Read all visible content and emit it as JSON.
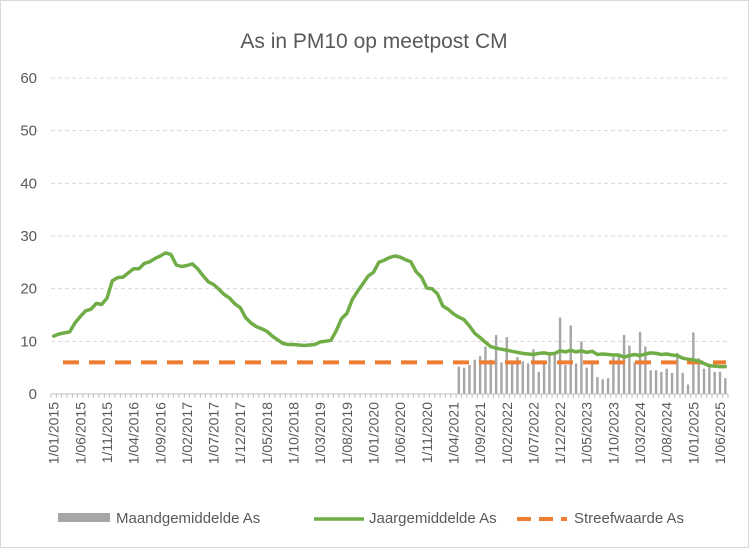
{
  "chart_data": {
    "type": "line",
    "title": "As in PM10 op meetpost CM",
    "xlabel": "",
    "ylabel": "",
    "ylim": [
      0,
      60
    ],
    "yticks": [
      "0",
      "10",
      "20",
      "30",
      "40",
      "50",
      "60"
    ],
    "grid": "horizontal dashed",
    "legend_position": "bottom",
    "x_range": [
      "2015-01",
      "2025-07"
    ],
    "xtick_labels": [
      "1/01/2015",
      "1/06/2015",
      "1/11/2015",
      "1/04/2016",
      "1/09/2016",
      "1/02/2017",
      "1/07/2017",
      "1/12/2017",
      "1/05/2018",
      "1/10/2018",
      "1/03/2019",
      "1/08/2019",
      "1/01/2020",
      "1/06/2020",
      "1/11/2020",
      "1/04/2021",
      "1/09/2021",
      "1/02/2022",
      "1/07/2022",
      "1/12/2022",
      "1/05/2023",
      "1/10/2023",
      "1/03/2024",
      "1/08/2024",
      "1/01/2025",
      "1/06/2025"
    ],
    "xtick_dates": [
      "2015-01",
      "2015-06",
      "2015-11",
      "2016-04",
      "2016-09",
      "2017-02",
      "2017-07",
      "2017-12",
      "2018-05",
      "2018-10",
      "2019-03",
      "2019-08",
      "2020-01",
      "2020-06",
      "2020-11",
      "2021-04",
      "2021-09",
      "2022-02",
      "2022-07",
      "2022-12",
      "2023-05",
      "2023-10",
      "2024-03",
      "2024-08",
      "2025-01",
      "2025-06"
    ],
    "series": [
      {
        "name": "Maandgemiddelde As",
        "type": "bar",
        "color": "#a6a6a6",
        "x": [
          "2021-05",
          "2021-06",
          "2021-07",
          "2021-08",
          "2021-09",
          "2021-10",
          "2021-11",
          "2021-12",
          "2022-01",
          "2022-02",
          "2022-03",
          "2022-04",
          "2022-05",
          "2022-06",
          "2022-07",
          "2022-08",
          "2022-09",
          "2022-10",
          "2022-11",
          "2022-12",
          "2023-01",
          "2023-02",
          "2023-03",
          "2023-04",
          "2023-05",
          "2023-06",
          "2023-07",
          "2023-08",
          "2023-09",
          "2023-10",
          "2023-11",
          "2023-12",
          "2024-01",
          "2024-02",
          "2024-03",
          "2024-04",
          "2024-05",
          "2024-06",
          "2024-07",
          "2024-08",
          "2024-09",
          "2024-10",
          "2024-11",
          "2024-12",
          "2025-01",
          "2025-02",
          "2025-03",
          "2025-04",
          "2025-05",
          "2025-06",
          "2025-07"
        ],
        "values": [
          5.2,
          5.0,
          5.5,
          6.5,
          7.2,
          9.0,
          6.5,
          11.2,
          6.0,
          10.8,
          5.6,
          7.0,
          6.2,
          5.8,
          8.5,
          4.2,
          6.0,
          8.0,
          7.5,
          14.5,
          5.5,
          13.0,
          5.8,
          10.0,
          5.0,
          6.2,
          3.2,
          2.8,
          3.0,
          7.0,
          7.2,
          11.2,
          9.2,
          6.0,
          11.8,
          9.0,
          4.5,
          4.5,
          4.2,
          4.8,
          4.0,
          7.8,
          4.0,
          1.8,
          11.7,
          6.8,
          4.8,
          5.6,
          4.2,
          4.2,
          3.0
        ]
      },
      {
        "name": "Jaargemiddelde As",
        "type": "line",
        "color": "#70ad47",
        "x": [
          "2015-01",
          "2015-02",
          "2015-03",
          "2015-04",
          "2015-05",
          "2015-06",
          "2015-07",
          "2015-08",
          "2015-09",
          "2015-10",
          "2015-11",
          "2015-12",
          "2016-01",
          "2016-02",
          "2016-03",
          "2016-04",
          "2016-05",
          "2016-06",
          "2016-07",
          "2016-08",
          "2016-09",
          "2016-10",
          "2016-11",
          "2016-12",
          "2017-01",
          "2017-02",
          "2017-03",
          "2017-04",
          "2017-05",
          "2017-06",
          "2017-07",
          "2017-08",
          "2017-09",
          "2017-10",
          "2017-11",
          "2017-12",
          "2018-01",
          "2018-02",
          "2018-03",
          "2018-04",
          "2018-05",
          "2018-06",
          "2018-07",
          "2018-08",
          "2018-09",
          "2018-10",
          "2018-11",
          "2018-12",
          "2019-01",
          "2019-02",
          "2019-03",
          "2019-04",
          "2019-05",
          "2019-06",
          "2019-07",
          "2019-08",
          "2019-09",
          "2019-10",
          "2019-11",
          "2019-12",
          "2020-01",
          "2020-02",
          "2020-03",
          "2020-04",
          "2020-05",
          "2020-06",
          "2020-07",
          "2020-08",
          "2020-09",
          "2020-10",
          "2020-11",
          "2020-12",
          "2021-01",
          "2021-02",
          "2021-03",
          "2021-04",
          "2021-05",
          "2021-06",
          "2021-07",
          "2021-08",
          "2021-09",
          "2021-10",
          "2021-11",
          "2021-12",
          "2022-01",
          "2022-02",
          "2022-03",
          "2022-04",
          "2022-05",
          "2022-06",
          "2022-07",
          "2022-08",
          "2022-09",
          "2022-10",
          "2022-11",
          "2022-12",
          "2023-01",
          "2023-02",
          "2023-03",
          "2023-04",
          "2023-05",
          "2023-06",
          "2023-07",
          "2023-08",
          "2023-09",
          "2023-10",
          "2023-11",
          "2023-12",
          "2024-01",
          "2024-02",
          "2024-03",
          "2024-04",
          "2024-05",
          "2024-06",
          "2024-07",
          "2024-08",
          "2024-09",
          "2024-10",
          "2024-11",
          "2024-12",
          "2025-01",
          "2025-02",
          "2025-03",
          "2025-04",
          "2025-05",
          "2025-06",
          "2025-07"
        ],
        "values": [
          11.0,
          11.4,
          11.6,
          11.8,
          13.5,
          14.7,
          15.8,
          16.1,
          17.2,
          17.0,
          18.2,
          21.5,
          22.1,
          22.2,
          23.0,
          23.8,
          23.8,
          24.8,
          25.1,
          25.7,
          26.2,
          26.8,
          26.5,
          24.5,
          24.2,
          24.4,
          24.7,
          23.8,
          22.5,
          21.3,
          20.8,
          19.9,
          18.9,
          18.2,
          17.1,
          16.4,
          14.5,
          13.5,
          12.8,
          12.4,
          11.9,
          11.0,
          10.3,
          9.6,
          9.4,
          9.4,
          9.3,
          9.2,
          9.3,
          9.4,
          9.9,
          10.0,
          10.2,
          12.0,
          14.3,
          15.3,
          17.9,
          19.5,
          20.9,
          22.4,
          23.1,
          25.0,
          25.4,
          25.9,
          26.2,
          26.0,
          25.5,
          25.1,
          23.2,
          22.2,
          20.1,
          20.0,
          19.0,
          16.7,
          16.1,
          15.2,
          14.6,
          14.1,
          12.9,
          11.5,
          10.7,
          9.8,
          9.0,
          8.7,
          8.5,
          8.3,
          8.1,
          7.9,
          7.7,
          7.6,
          7.5,
          7.7,
          7.8,
          7.6,
          7.7,
          8.2,
          8.0,
          8.3,
          8.0,
          8.2,
          7.9,
          8.1,
          7.5,
          7.6,
          7.5,
          7.4,
          7.4,
          7.0,
          7.3,
          7.5,
          7.3,
          7.6,
          7.8,
          7.7,
          7.5,
          7.6,
          7.4,
          7.3,
          6.8,
          6.6,
          6.5,
          6.2,
          5.8,
          5.4,
          5.3,
          5.2,
          5.2
        ]
      },
      {
        "name": "Streefwaarde As",
        "type": "line",
        "style": "dashed",
        "color": "#ed7d31",
        "x": [
          "2015-01",
          "2025-07"
        ],
        "values": [
          6,
          6
        ]
      }
    ]
  }
}
